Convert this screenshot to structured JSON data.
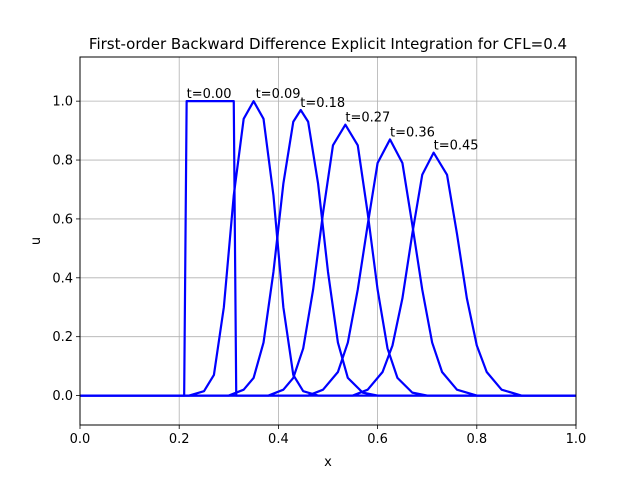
{
  "chart_data": {
    "type": "line",
    "title": "First-order Backward Difference Explicit Integration for  CFL=0.4",
    "xlabel": "x",
    "ylabel": "u",
    "xlim": [
      0.0,
      1.0
    ],
    "ylim": [
      -0.1,
      1.15
    ],
    "xticks": [
      0.0,
      0.2,
      0.4,
      0.6,
      0.8,
      1.0
    ],
    "xtick_labels": [
      "0.0",
      "0.2",
      "0.4",
      "0.6",
      "0.8",
      "1.0"
    ],
    "yticks": [
      0.0,
      0.2,
      0.4,
      0.6,
      0.8,
      1.0
    ],
    "ytick_labels": [
      "0.0",
      "0.2",
      "0.4",
      "0.6",
      "0.8",
      "1.0"
    ],
    "grid": true,
    "line_color": "#0000ff",
    "series": [
      {
        "x": [
          0.0,
          0.21,
          0.215,
          0.22,
          0.31,
          0.315,
          0.32,
          1.0
        ],
        "y": [
          0.0,
          0.0,
          1.0,
          1.0,
          1.0,
          0.0,
          0.0,
          0.0
        ]
      },
      {
        "x": [
          0.0,
          0.22,
          0.25,
          0.27,
          0.29,
          0.31,
          0.33,
          0.35,
          0.37,
          0.39,
          0.41,
          0.43,
          0.45,
          0.48,
          1.0
        ],
        "y": [
          0.0,
          0.0,
          0.015,
          0.07,
          0.3,
          0.68,
          0.94,
          1.0,
          0.94,
          0.68,
          0.3,
          0.07,
          0.015,
          0.0,
          0.0
        ]
      },
      {
        "x": [
          0.0,
          0.3,
          0.33,
          0.35,
          0.37,
          0.39,
          0.41,
          0.43,
          0.445,
          0.46,
          0.48,
          0.5,
          0.52,
          0.54,
          0.57,
          0.6,
          1.0
        ],
        "y": [
          0.0,
          0.0,
          0.02,
          0.06,
          0.18,
          0.42,
          0.72,
          0.93,
          0.97,
          0.93,
          0.72,
          0.42,
          0.18,
          0.06,
          0.01,
          0.0,
          0.0
        ]
      },
      {
        "x": [
          0.0,
          0.38,
          0.41,
          0.43,
          0.45,
          0.47,
          0.49,
          0.51,
          0.535,
          0.56,
          0.58,
          0.6,
          0.62,
          0.64,
          0.67,
          0.7,
          1.0
        ],
        "y": [
          0.0,
          0.0,
          0.02,
          0.06,
          0.16,
          0.36,
          0.62,
          0.85,
          0.92,
          0.85,
          0.62,
          0.36,
          0.16,
          0.06,
          0.01,
          0.0,
          0.0
        ]
      },
      {
        "x": [
          0.0,
          0.46,
          0.49,
          0.52,
          0.54,
          0.56,
          0.58,
          0.6,
          0.625,
          0.65,
          0.67,
          0.69,
          0.71,
          0.73,
          0.76,
          0.8,
          1.0
        ],
        "y": [
          0.0,
          0.0,
          0.02,
          0.08,
          0.18,
          0.36,
          0.58,
          0.79,
          0.87,
          0.79,
          0.58,
          0.36,
          0.18,
          0.08,
          0.02,
          0.0,
          0.0
        ]
      },
      {
        "x": [
          0.0,
          0.55,
          0.58,
          0.61,
          0.63,
          0.65,
          0.67,
          0.69,
          0.713,
          0.74,
          0.76,
          0.78,
          0.8,
          0.82,
          0.85,
          0.89,
          1.0
        ],
        "y": [
          0.0,
          0.0,
          0.02,
          0.08,
          0.17,
          0.33,
          0.55,
          0.75,
          0.825,
          0.75,
          0.55,
          0.33,
          0.17,
          0.08,
          0.02,
          0.0,
          0.0
        ]
      }
    ],
    "annotations": [
      {
        "text": "t=0.00",
        "x": 0.215,
        "y": 1.0
      },
      {
        "text": "t=0.09",
        "x": 0.354,
        "y": 1.0
      },
      {
        "text": "t=0.18",
        "x": 0.444,
        "y": 0.97
      },
      {
        "text": "t=0.27",
        "x": 0.535,
        "y": 0.92
      },
      {
        "text": "t=0.36",
        "x": 0.625,
        "y": 0.87
      },
      {
        "text": "t=0.45",
        "x": 0.713,
        "y": 0.825
      }
    ]
  }
}
